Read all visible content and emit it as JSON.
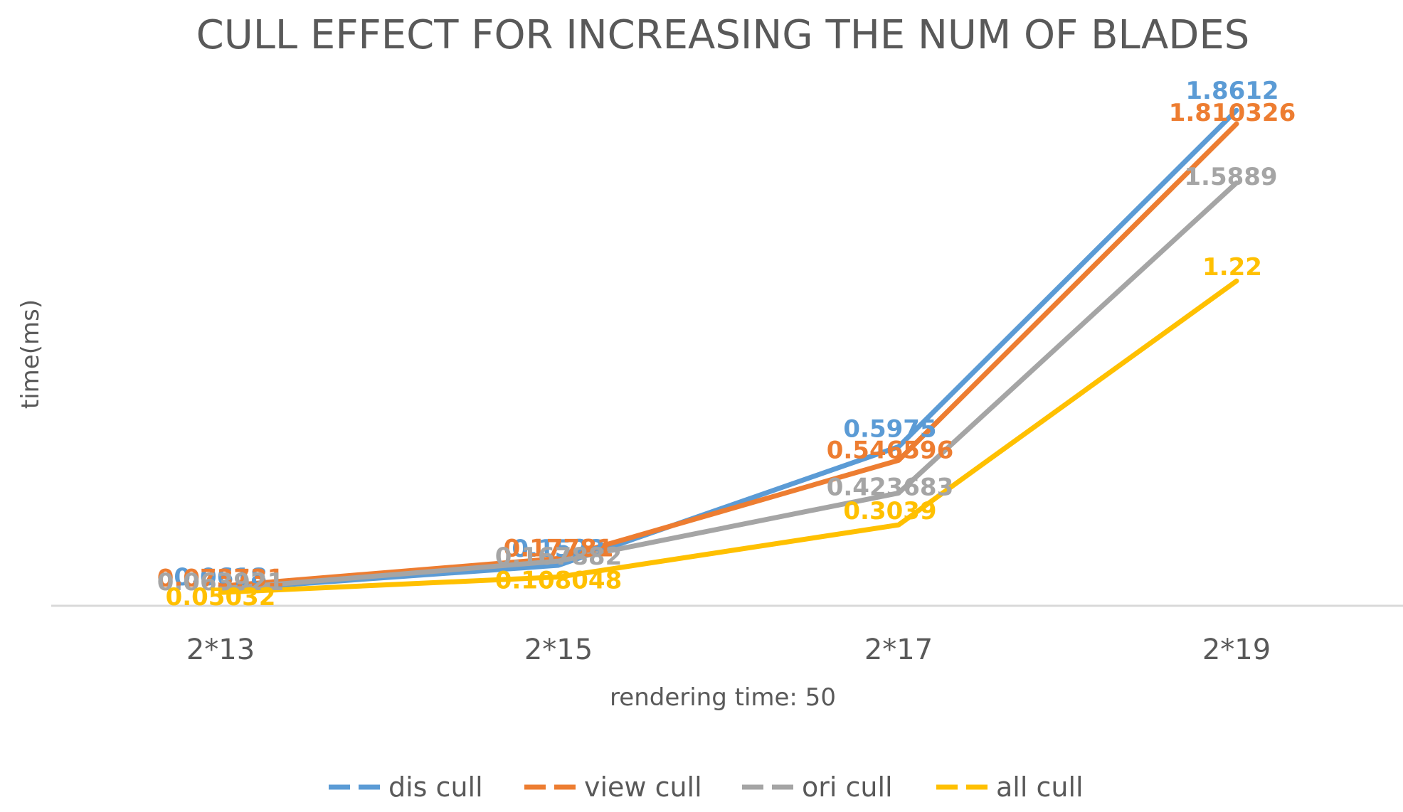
{
  "chart_data": {
    "type": "line",
    "title": "CULL EFFECT FOR INCREASING THE NUM OF BLADES",
    "xlabel": "rendering time: 50",
    "ylabel": "time(ms)",
    "categories": [
      "2*13",
      "2*15",
      "2*17",
      "2*19"
    ],
    "ylim": [
      0,
      2.0
    ],
    "grid": false,
    "legend_position": "bottom",
    "series": [
      {
        "name": "dis cull",
        "color": "#5B9BD5",
        "values": [
          0.0618,
          0.1523,
          0.5975,
          1.8612
        ],
        "labels": [
          "0.0618",
          "0.1523",
          "0.5975",
          "1.8612"
        ]
      },
      {
        "name": "view cull",
        "color": "#ED7D31",
        "values": [
          0.073731,
          0.17781,
          0.546596,
          1.810326
        ],
        "labels": [
          "0.073731",
          "0.17781",
          "0.546596",
          "1.810326"
        ]
      },
      {
        "name": "ori cull",
        "color": "#A5A5A5",
        "values": [
          0.063921,
          0.167882,
          0.423683,
          1.5889
        ],
        "labels": [
          "0.063921",
          "0.167882",
          "0.423683",
          "1.5889"
        ]
      },
      {
        "name": "all cull",
        "color": "#FFC000",
        "values": [
          0.05032,
          0.108048,
          0.3039,
          1.22
        ],
        "labels": [
          "0.05032",
          "0.108048",
          "0.3039",
          "1.22"
        ]
      }
    ]
  }
}
